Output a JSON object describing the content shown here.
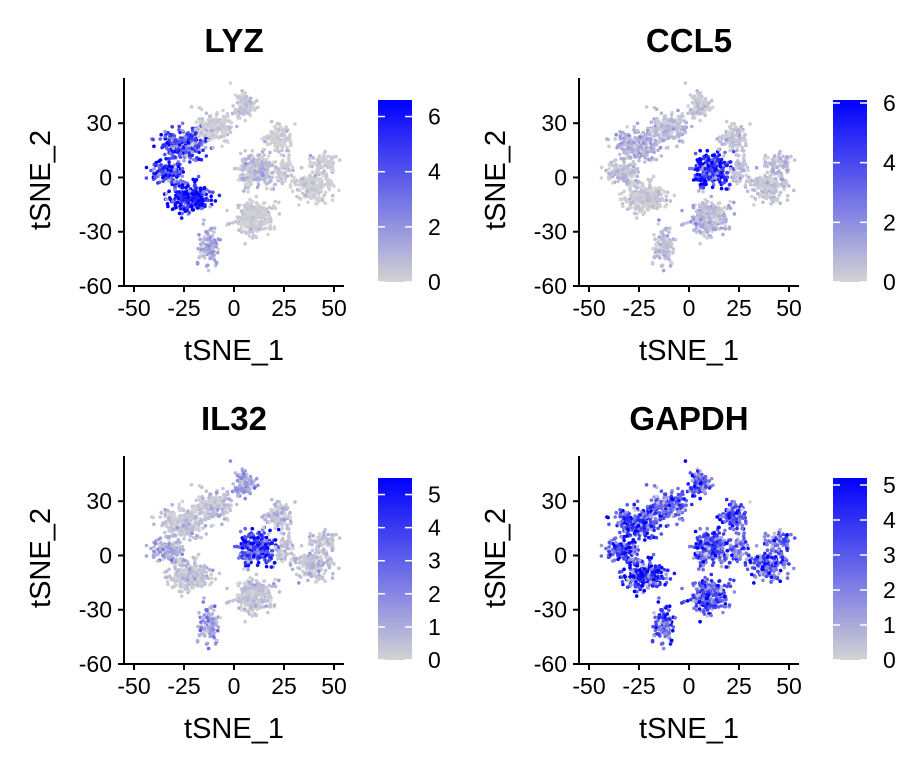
{
  "figure": {
    "low_color": "#d3d3d3",
    "high_color": "#0000ff"
  },
  "chart_data": [
    {
      "type": "scatter",
      "title": "LYZ",
      "xlabel": "tSNE_1",
      "ylabel": "tSNE_2",
      "xlim": [
        -55,
        55
      ],
      "ylim": [
        -60,
        55
      ],
      "xticks": [
        "-50",
        "-25",
        "0",
        "25",
        "50"
      ],
      "yticks": [
        "-60",
        "-30",
        "0",
        "30"
      ],
      "colorbar": {
        "min": 0,
        "max": 6.6,
        "ticks": [
          "0",
          "2",
          "4",
          "6"
        ]
      },
      "cluster_expression": {
        "monocyte_cd14": 5.6,
        "monocyte_fcgr3a": 4.4,
        "dendritic": 4.0,
        "b_cell": 0.2,
        "t_cell_top": 0.4,
        "t_cell_center": 0.6,
        "nk": 0.1,
        "t_cell_lower": 0.2,
        "platelet": 1.2
      }
    },
    {
      "type": "scatter",
      "title": "CCL5",
      "xlabel": "tSNE_1",
      "ylabel": "tSNE_2",
      "xlim": [
        -55,
        55
      ],
      "ylim": [
        -60,
        55
      ],
      "xticks": [
        "-50",
        "-25",
        "0",
        "25",
        "50"
      ],
      "yticks": [
        "-60",
        "-30",
        "0",
        "30"
      ],
      "colorbar": {
        "min": 0,
        "max": 6.1,
        "ticks": [
          "0",
          "2",
          "4",
          "6"
        ]
      },
      "cluster_expression": {
        "monocyte_cd14": 0.2,
        "monocyte_fcgr3a": 0.5,
        "dendritic": 0.8,
        "b_cell": 0.5,
        "t_cell_top": 0.3,
        "t_cell_center": 4.6,
        "nk": 0.4,
        "t_cell_lower": 0.7,
        "platelet": 0.6
      }
    },
    {
      "type": "scatter",
      "title": "IL32",
      "xlabel": "tSNE_1",
      "ylabel": "tSNE_2",
      "xlim": [
        -55,
        55
      ],
      "ylim": [
        -60,
        55
      ],
      "xticks": [
        "-50",
        "-25",
        "0",
        "25",
        "50"
      ],
      "yticks": [
        "-60",
        "-30",
        "0",
        "30"
      ],
      "colorbar": {
        "min": 0,
        "max": 5.5,
        "ticks": [
          "0",
          "1",
          "2",
          "3",
          "4",
          "5"
        ]
      },
      "cluster_expression": {
        "monocyte_cd14": 0.3,
        "monocyte_fcgr3a": 1.0,
        "dendritic": 0.3,
        "b_cell": 0.4,
        "t_cell_top": 1.2,
        "t_cell_center": 3.8,
        "nk": 0.4,
        "t_cell_lower": 0.3,
        "platelet": 1.2
      }
    },
    {
      "type": "scatter",
      "title": "GAPDH",
      "xlabel": "tSNE_1",
      "ylabel": "tSNE_2",
      "xlim": [
        -55,
        55
      ],
      "ylim": [
        -60,
        55
      ],
      "xticks": [
        "-50",
        "-25",
        "0",
        "25",
        "50"
      ],
      "yticks": [
        "-60",
        "-30",
        "0",
        "30"
      ],
      "colorbar": {
        "min": 0,
        "max": 5.2,
        "ticks": [
          "0",
          "1",
          "2",
          "3",
          "4",
          "5"
        ]
      },
      "cluster_expression": {
        "monocyte_cd14": 3.8,
        "monocyte_fcgr3a": 3.6,
        "dendritic": 3.4,
        "b_cell": 2.6,
        "t_cell_top": 2.9,
        "t_cell_center": 3.0,
        "nk": 3.1,
        "t_cell_lower": 3.0,
        "platelet": 3.1
      }
    }
  ]
}
